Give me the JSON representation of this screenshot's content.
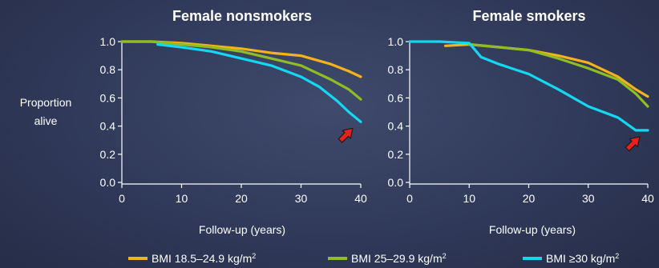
{
  "colors": {
    "bmi_normal": "#f5b21a",
    "bmi_overweight": "#8fbd23",
    "bmi_obese": "#14d8f2",
    "arrow": "#e8211c"
  },
  "shared_ylabel_line1": "Proportion",
  "shared_ylabel_line2": "alive",
  "legend": [
    {
      "label": "BMI 18.5–24.9 kg/m",
      "sup": "2",
      "color": "#f5b21a"
    },
    {
      "label": "BMI 25–29.9 kg/m",
      "sup": "2",
      "color": "#8fbd23"
    },
    {
      "label": "BMI ≥30 kg/m",
      "sup": "2",
      "color": "#14d8f2"
    }
  ],
  "chart_data": [
    {
      "type": "line",
      "title": "Female nonsmokers",
      "xlabel": "Follow-up (years)",
      "ylabel": "Proportion alive",
      "xlim": [
        0,
        40
      ],
      "ylim": [
        0,
        1.0
      ],
      "xticks": [
        "0",
        "10",
        "20",
        "30",
        "40"
      ],
      "yticks": [
        "0.0",
        "0.2",
        "0.4",
        "0.6",
        "0.8",
        "1.0"
      ],
      "grid": false,
      "annotation": "red arrow pointing at BMI ≥30 curve end",
      "series": [
        {
          "name": "BMI 18.5–24.9 kg/m²",
          "color": "#f5b21a",
          "x": [
            0,
            5,
            10,
            15,
            20,
            25,
            30,
            35,
            38,
            40
          ],
          "y": [
            1.0,
            1.0,
            0.99,
            0.97,
            0.95,
            0.92,
            0.9,
            0.84,
            0.79,
            0.75
          ]
        },
        {
          "name": "BMI 25–29.9 kg/m²",
          "color": "#8fbd23",
          "x": [
            0,
            5,
            10,
            15,
            20,
            25,
            30,
            35,
            38,
            40
          ],
          "y": [
            1.0,
            1.0,
            0.98,
            0.96,
            0.93,
            0.88,
            0.83,
            0.73,
            0.66,
            0.59
          ]
        },
        {
          "name": "BMI ≥30 kg/m²",
          "color": "#14d8f2",
          "x": [
            6,
            10,
            15,
            20,
            25,
            30,
            33,
            36,
            38,
            40
          ],
          "y": [
            0.98,
            0.96,
            0.93,
            0.88,
            0.83,
            0.75,
            0.68,
            0.58,
            0.5,
            0.43
          ]
        }
      ]
    },
    {
      "type": "line",
      "title": "Female smokers",
      "xlabel": "Follow-up (years)",
      "ylabel": "Proportion alive",
      "xlim": [
        0,
        40
      ],
      "ylim": [
        0,
        1.0
      ],
      "xticks": [
        "0",
        "10",
        "20",
        "30",
        "40"
      ],
      "yticks": [
        "0.0",
        "0.2",
        "0.4",
        "0.6",
        "0.8",
        "1.0"
      ],
      "grid": false,
      "annotation": "red arrow pointing at BMI ≥30 curve end",
      "series": [
        {
          "name": "BMI 18.5–24.9 kg/m²",
          "color": "#f5b21a",
          "x": [
            6,
            10,
            15,
            20,
            25,
            30,
            35,
            38,
            40
          ],
          "y": [
            0.97,
            0.98,
            0.96,
            0.94,
            0.9,
            0.85,
            0.75,
            0.66,
            0.61
          ]
        },
        {
          "name": "BMI 25–29.9 kg/m²",
          "color": "#8fbd23",
          "x": [
            10,
            15,
            20,
            25,
            30,
            35,
            38,
            40
          ],
          "y": [
            0.98,
            0.96,
            0.94,
            0.88,
            0.81,
            0.73,
            0.63,
            0.54
          ]
        },
        {
          "name": "BMI ≥30 kg/m²",
          "color": "#14d8f2",
          "x": [
            0,
            5,
            10,
            12,
            15,
            20,
            25,
            30,
            35,
            38,
            40
          ],
          "y": [
            1.0,
            1.0,
            0.99,
            0.89,
            0.84,
            0.77,
            0.66,
            0.54,
            0.46,
            0.37,
            0.37
          ]
        }
      ]
    }
  ]
}
